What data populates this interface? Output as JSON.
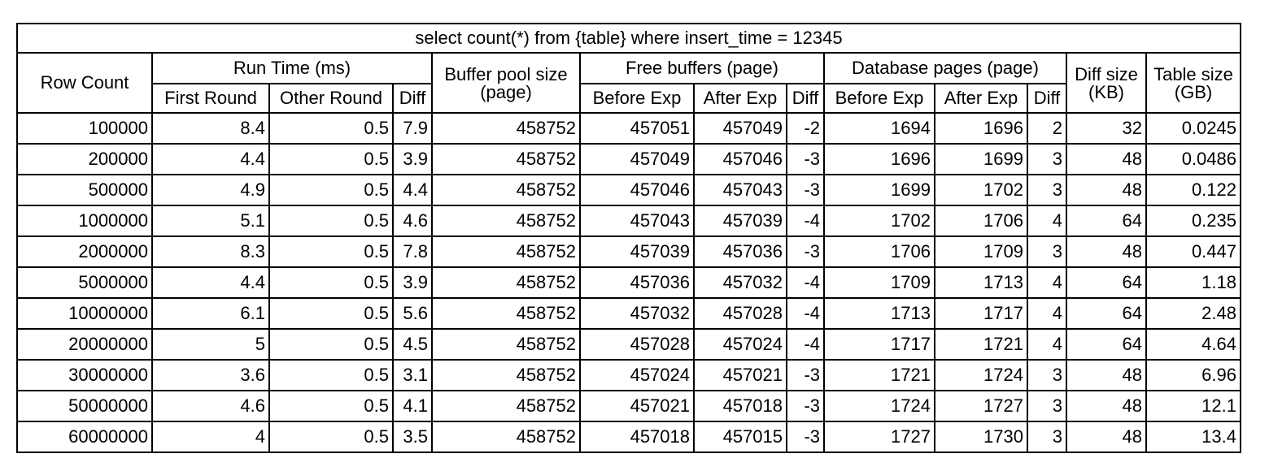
{
  "chart_data": {
    "type": "table",
    "title": "select count(*) from {table} where insert_time = 12345",
    "header_groups": {
      "row_count": "Row Count",
      "run_time": "Run Time (ms)",
      "buffer_pool_line1": "Buffer pool size",
      "buffer_pool_line2": "(page)",
      "free_buffers": "Free buffers (page)",
      "database_pages": "Database pages (page)",
      "diff_size_line1": "Diff size",
      "diff_size_line2": "(KB)",
      "table_size_line1": "Table size",
      "table_size_line2": "(GB)"
    },
    "sub_headers": {
      "first_round": "First Round",
      "other_round": "Other Round",
      "diff": "Diff",
      "before_exp": "Before Exp",
      "after_exp": "After Exp"
    },
    "rows": [
      [
        "100000",
        "8.4",
        "0.5",
        "7.9",
        "458752",
        "457051",
        "457049",
        "-2",
        "1694",
        "1696",
        "2",
        "32",
        "0.0245"
      ],
      [
        "200000",
        "4.4",
        "0.5",
        "3.9",
        "458752",
        "457049",
        "457046",
        "-3",
        "1696",
        "1699",
        "3",
        "48",
        "0.0486"
      ],
      [
        "500000",
        "4.9",
        "0.5",
        "4.4",
        "458752",
        "457046",
        "457043",
        "-3",
        "1699",
        "1702",
        "3",
        "48",
        "0.122"
      ],
      [
        "1000000",
        "5.1",
        "0.5",
        "4.6",
        "458752",
        "457043",
        "457039",
        "-4",
        "1702",
        "1706",
        "4",
        "64",
        "0.235"
      ],
      [
        "2000000",
        "8.3",
        "0.5",
        "7.8",
        "458752",
        "457039",
        "457036",
        "-3",
        "1706",
        "1709",
        "3",
        "48",
        "0.447"
      ],
      [
        "5000000",
        "4.4",
        "0.5",
        "3.9",
        "458752",
        "457036",
        "457032",
        "-4",
        "1709",
        "1713",
        "4",
        "64",
        "1.18"
      ],
      [
        "10000000",
        "6.1",
        "0.5",
        "5.6",
        "458752",
        "457032",
        "457028",
        "-4",
        "1713",
        "1717",
        "4",
        "64",
        "2.48"
      ],
      [
        "20000000",
        "5",
        "0.5",
        "4.5",
        "458752",
        "457028",
        "457024",
        "-4",
        "1717",
        "1721",
        "4",
        "64",
        "4.64"
      ],
      [
        "30000000",
        "3.6",
        "0.5",
        "3.1",
        "458752",
        "457024",
        "457021",
        "-3",
        "1721",
        "1724",
        "3",
        "48",
        "6.96"
      ],
      [
        "50000000",
        "4.6",
        "0.5",
        "4.1",
        "458752",
        "457021",
        "457018",
        "-3",
        "1724",
        "1727",
        "3",
        "48",
        "12.1"
      ],
      [
        "60000000",
        "4",
        "0.5",
        "3.5",
        "458752",
        "457018",
        "457015",
        "-3",
        "1727",
        "1730",
        "3",
        "48",
        "13.4"
      ]
    ]
  }
}
